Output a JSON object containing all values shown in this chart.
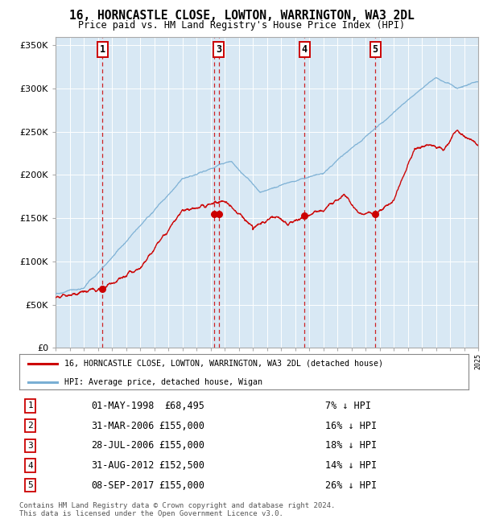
{
  "title": "16, HORNCASTLE CLOSE, LOWTON, WARRINGTON, WA3 2DL",
  "subtitle": "Price paid vs. HM Land Registry's House Price Index (HPI)",
  "plot_bg": "#d8e8f4",
  "fig_bg": "#ffffff",
  "ylim": [
    0,
    360000
  ],
  "yticks": [
    0,
    50000,
    100000,
    150000,
    200000,
    250000,
    300000,
    350000
  ],
  "ytick_labels": [
    "£0",
    "£50K",
    "£100K",
    "£150K",
    "£200K",
    "£250K",
    "£300K",
    "£350K"
  ],
  "x_start_year": 1995,
  "x_end_year": 2025,
  "transactions": [
    {
      "num": 1,
      "date": "01-MAY-1998",
      "year": 1998.33,
      "price": 68495,
      "pct": "7%",
      "show_label": true
    },
    {
      "num": 2,
      "date": "31-MAR-2006",
      "year": 2006.25,
      "price": 155000,
      "pct": "16%",
      "show_label": false
    },
    {
      "num": 3,
      "date": "28-JUL-2006",
      "year": 2006.58,
      "price": 155000,
      "pct": "18%",
      "show_label": true
    },
    {
      "num": 4,
      "date": "31-AUG-2012",
      "year": 2012.67,
      "price": 152500,
      "pct": "14%",
      "show_label": true
    },
    {
      "num": 5,
      "date": "08-SEP-2017",
      "year": 2017.69,
      "price": 155000,
      "pct": "26%",
      "show_label": true
    }
  ],
  "legend_line1": "16, HORNCASTLE CLOSE, LOWTON, WARRINGTON, WA3 2DL (detached house)",
  "legend_line2": "HPI: Average price, detached house, Wigan",
  "table_data": [
    [
      1,
      "01-MAY-1998",
      "£68,495",
      "7% ↓ HPI"
    ],
    [
      2,
      "31-MAR-2006",
      "£155,000",
      "16% ↓ HPI"
    ],
    [
      3,
      "28-JUL-2006",
      "£155,000",
      "18% ↓ HPI"
    ],
    [
      4,
      "31-AUG-2012",
      "£152,500",
      "14% ↓ HPI"
    ],
    [
      5,
      "08-SEP-2017",
      "£155,000",
      "26% ↓ HPI"
    ]
  ],
  "footer1": "Contains HM Land Registry data © Crown copyright and database right 2024.",
  "footer2": "This data is licensed under the Open Government Licence v3.0.",
  "red_color": "#cc0000",
  "blue_color": "#7aafd4",
  "grid_color": "#ffffff",
  "spine_color": "#aaaaaa"
}
